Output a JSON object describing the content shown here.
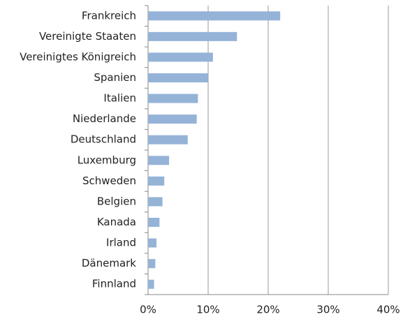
{
  "chart_data": {
    "type": "hbar",
    "categories": [
      "Frankreich",
      "Vereinigte Staaten",
      "Vereinigtes Königreich",
      "Spanien",
      "Italien",
      "Niederlande",
      "Deutschland",
      "Luxemburg",
      "Schweden",
      "Belgien",
      "Kanada",
      "Irland",
      "Dänemark",
      "Finnland"
    ],
    "values": [
      22.0,
      14.8,
      10.8,
      10.0,
      8.3,
      8.1,
      6.6,
      3.5,
      2.7,
      2.4,
      1.9,
      1.4,
      1.2,
      1.0
    ],
    "color": "#95b3d7",
    "xlim": [
      0,
      40
    ],
    "xticks": [
      {
        "value": 0,
        "label": "0%"
      },
      {
        "value": 10,
        "label": "10%"
      },
      {
        "value": 20,
        "label": "20%"
      },
      {
        "value": 30,
        "label": "30%"
      },
      {
        "value": 40,
        "label": "40%"
      }
    ],
    "grid": true
  }
}
